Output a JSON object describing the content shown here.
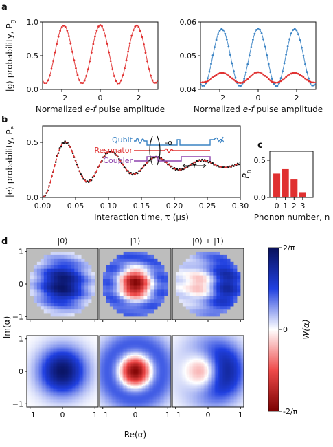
{
  "panel_labels": {
    "a": "a",
    "b": "b",
    "c": "c",
    "d": "d"
  },
  "colors": {
    "red": "#e03030",
    "blue": "#3a83c4",
    "black": "#111111",
    "qubit": "#3a83c4",
    "resonator": "#e03030",
    "coupler": "#8e44ad",
    "gray_bg": "#bdbdbd"
  },
  "panel_a_left": {
    "ylabel": "|g⟩ probability, P",
    "ylabel_sub": "g",
    "xlabel_pre": "Normalized ",
    "xlabel_italic": "e-f",
    "xlabel_post": " pulse amplitude",
    "xticks": [
      "−2",
      "0",
      "2"
    ],
    "yticks": [
      "0.0",
      "0.5",
      "1.0"
    ]
  },
  "panel_a_right": {
    "xlabel_pre": "Normalized ",
    "xlabel_italic": "e-f",
    "xlabel_post": " pulse amplitude",
    "xticks": [
      "−2",
      "0",
      "2"
    ],
    "yticks": [
      "0.04",
      "0.05",
      "0.06"
    ]
  },
  "panel_b": {
    "ylabel": "|e⟩ probability, P",
    "ylabel_sub": "e",
    "xlabel": "Interaction time, τ (μs)",
    "xticks": [
      "0.00",
      "0.05",
      "0.10",
      "0.15",
      "0.20",
      "0.25",
      "0.30"
    ],
    "yticks": [
      "0.0",
      "0.5"
    ],
    "inset": {
      "qubit": "Qubit",
      "resonator": "Resonator",
      "coupler": "Coupler",
      "alpha": "-α",
      "tau": "τ"
    }
  },
  "panel_c": {
    "ylabel": "P",
    "ylabel_sub": "n",
    "xlabel": "Phonon number, n",
    "xticks": [
      "0",
      "1",
      "2",
      "3"
    ],
    "yticks": [
      "0.0",
      "0.5"
    ]
  },
  "panel_d": {
    "titles": [
      "|0⟩",
      "|1⟩",
      "|0⟩ + |1⟩"
    ],
    "ylabel": "Im(α)",
    "xlabel": "Re(α)",
    "xticks": [
      "−1",
      "0",
      "1"
    ],
    "yticks": [
      "1",
      "0",
      "−1"
    ],
    "colorbar_label": "W(α)",
    "colorbar_ticks": [
      "2/π",
      "0",
      "-2/π"
    ]
  },
  "chart_data": [
    {
      "type": "scatter",
      "panel": "a-left",
      "xlim": [
        -3,
        3
      ],
      "ylim": [
        0,
        1.0
      ],
      "series": [
        {
          "style": "points+fit",
          "color": "red",
          "model": {
            "kind": "cos",
            "offset": 0.52,
            "amp": 0.43,
            "period": 1.9
          }
        }
      ]
    },
    {
      "type": "scatter",
      "panel": "a-right",
      "xlim": [
        -3,
        3
      ],
      "ylim": [
        0.04,
        0.06
      ],
      "series": [
        {
          "style": "points+fit",
          "color": "blue",
          "model": {
            "kind": "cos",
            "offset": 0.0495,
            "amp": 0.0085,
            "period": 1.9
          }
        },
        {
          "style": "points+fit",
          "color": "red",
          "model": {
            "kind": "cos",
            "offset": 0.0435,
            "amp": 0.0015,
            "period": 1.9
          }
        }
      ]
    },
    {
      "type": "line",
      "panel": "b",
      "xlim": [
        0,
        0.3
      ],
      "ylim": [
        0,
        0.65
      ],
      "series": [
        {
          "style": "points",
          "color": "black",
          "model": {
            "kind": "damped",
            "offset": 0.3,
            "amp": 0.28,
            "freq": 14.4,
            "decay": 0.12
          }
        },
        {
          "style": "dashed-fit",
          "color": "red",
          "model": {
            "kind": "damped",
            "offset": 0.3,
            "amp": 0.28,
            "freq": 14.4,
            "decay": 0.12
          }
        }
      ]
    },
    {
      "type": "bar",
      "panel": "c",
      "categories": [
        "0",
        "1",
        "2",
        "3"
      ],
      "values": [
        0.32,
        0.38,
        0.24,
        0.07
      ],
      "ylim": [
        0,
        0.62
      ]
    },
    {
      "type": "heatmap",
      "panel": "d",
      "xlim": [
        -1.1,
        1.1
      ],
      "ylim": [
        -1.1,
        1.1
      ],
      "zlim": [
        -0.6366,
        0.6366
      ],
      "states": [
        {
          "title": "|0⟩",
          "rho00": 1,
          "rho11": 0,
          "rho01": 0
        },
        {
          "title": "|1⟩",
          "rho00": 0,
          "rho11": 1,
          "rho01": 0
        },
        {
          "title": "|0⟩ + |1⟩",
          "rho00": 0.5,
          "rho11": 0.5,
          "rho01": 0.5
        }
      ]
    }
  ]
}
